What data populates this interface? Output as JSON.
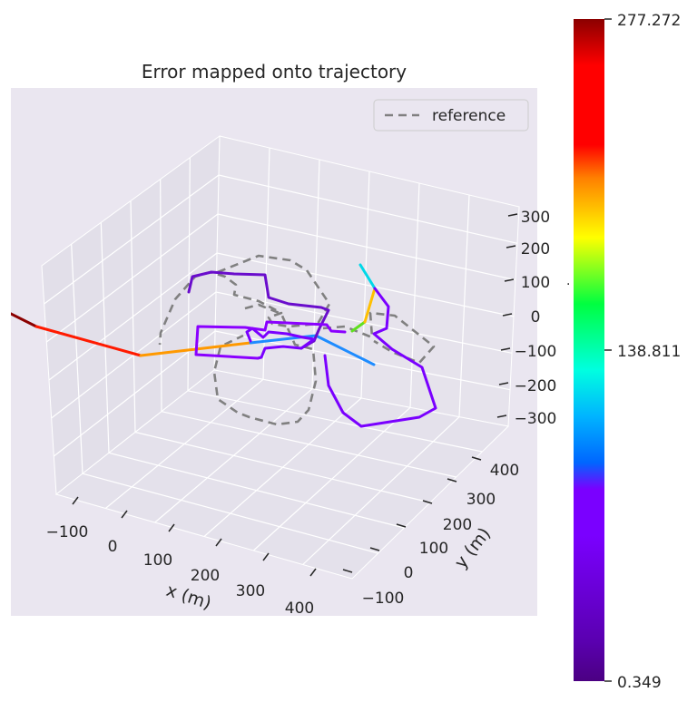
{
  "chart_data": {
    "type": "line",
    "projection": "3d",
    "title": "Error mapped onto trajectory",
    "xlabel": "x (m)",
    "ylabel": "y (m)",
    "zlabel": "",
    "x_ticks": [
      "−100",
      "0",
      "100",
      "200",
      "300",
      "400"
    ],
    "y_ticks": [
      "−100",
      "0",
      "100",
      "200",
      "300",
      "400"
    ],
    "z_ticks": [
      "300",
      "200",
      "100",
      "0",
      "−100",
      "−200",
      "−300"
    ],
    "legend": {
      "position": "top-right",
      "entries": [
        {
          "label": "reference",
          "style": "dashed",
          "color": "#808080"
        }
      ]
    },
    "colorbar": {
      "colormap": "hsv-like (violet → blue → cyan → green → yellow → orange → red → dark red)",
      "min": 0.349,
      "mid": 138.811,
      "max": 277.272,
      "tick_labels": [
        "277.272",
        "138.811",
        "0.349"
      ]
    },
    "colors": {
      "panel_bg": "#eae6f0",
      "reference": "#808080",
      "low_error": "#7a00ff",
      "high_error": "#8b0000"
    }
  }
}
